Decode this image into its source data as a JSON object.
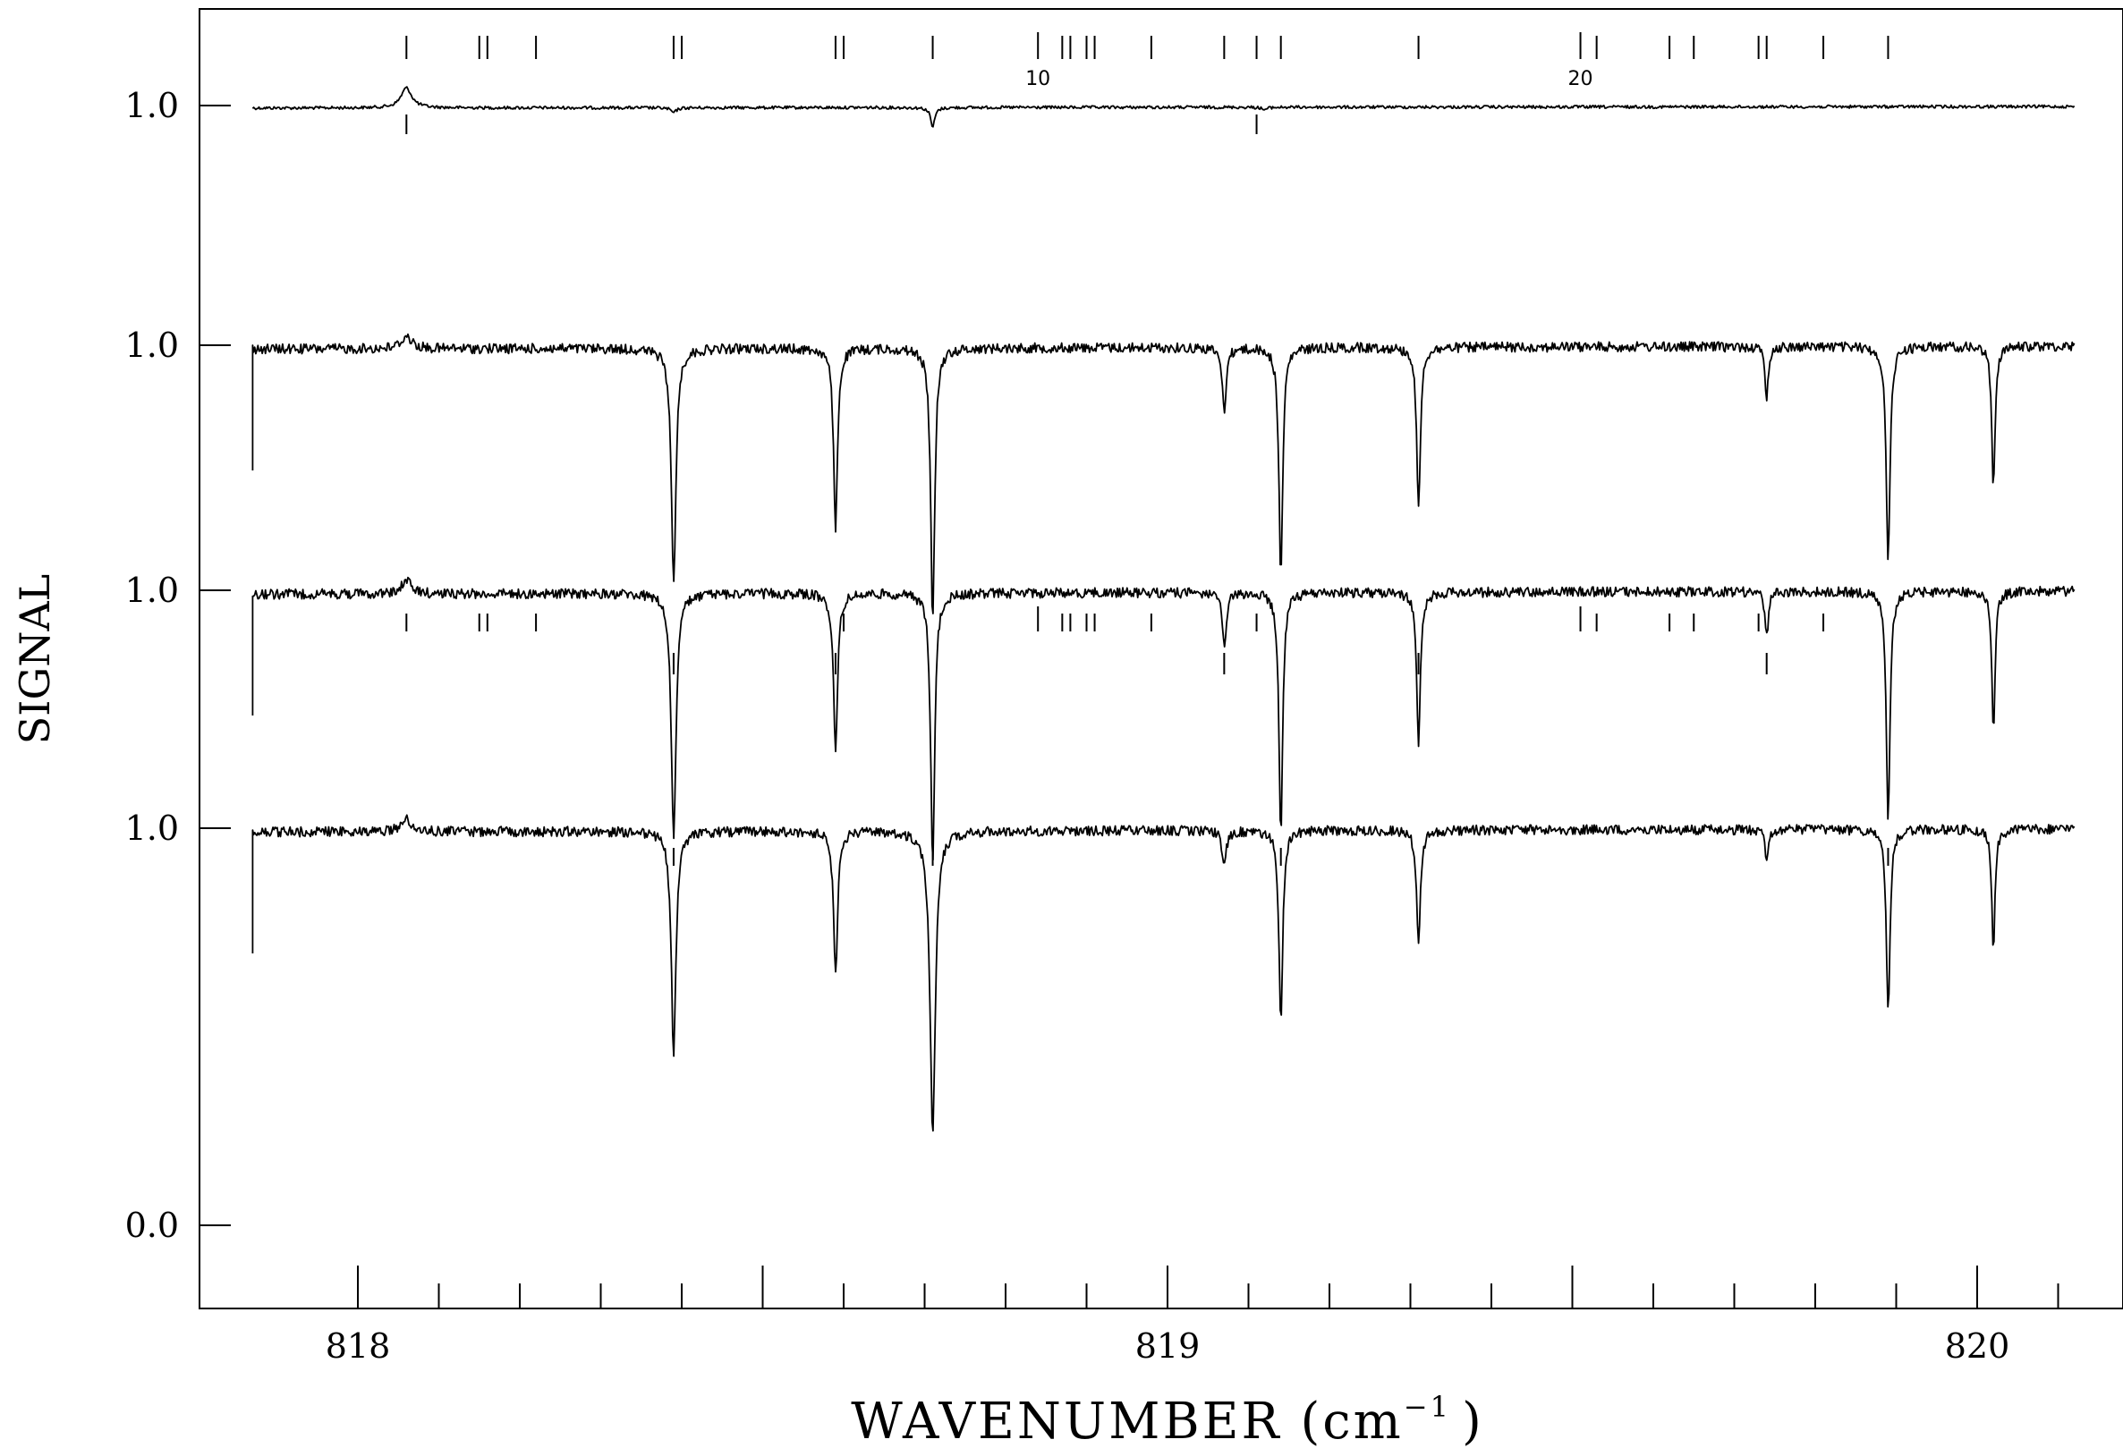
{
  "chart_data": {
    "type": "line",
    "title": "",
    "xlabel": "WAVENUMBER (cm",
    "xlabel_exp": "−1",
    "xlabel_close": ")",
    "ylabel": "SIGNAL",
    "xlim": [
      817.8,
      820.13
    ],
    "x_major_ticks": [
      818,
      819,
      820
    ],
    "x_major_tick_labels": [
      "818",
      "819",
      "820"
    ],
    "x_minor_step": 0.1,
    "y_tick_labels": [
      "1.0",
      "1.0",
      "1.0",
      "1.0",
      "0.0"
    ],
    "grid": false,
    "legend": "none",
    "line_color": "#000000",
    "series": [
      {
        "id": "trace-1",
        "x_range": [
          817.87,
          820.12
        ],
        "baseline": 0.99,
        "baseline_slope": 0.006,
        "features": [
          {
            "x": 818.06,
            "depth": -0.08,
            "width": 0.008
          },
          {
            "x": 818.39,
            "depth": 0.02,
            "width": 0.004
          },
          {
            "x": 818.71,
            "depth": 0.08,
            "width": 0.003
          },
          {
            "x": 819.12,
            "depth": 0.01,
            "width": 0.004
          }
        ]
      },
      {
        "id": "trace-2",
        "x_range": [
          817.87,
          820.12
        ],
        "baseline": 0.985,
        "baseline_slope": 0.012,
        "features": [
          {
            "x": 818.06,
            "depth": -0.05,
            "width": 0.008
          },
          {
            "x": 818.39,
            "depth": 0.92,
            "width": 0.0035
          },
          {
            "x": 818.59,
            "depth": 0.72,
            "width": 0.003
          },
          {
            "x": 818.71,
            "depth": 1.1,
            "width": 0.003
          },
          {
            "x": 819.07,
            "depth": 0.25,
            "width": 0.003
          },
          {
            "x": 819.14,
            "depth": 0.92,
            "width": 0.0028
          },
          {
            "x": 819.31,
            "depth": 0.65,
            "width": 0.0028
          },
          {
            "x": 819.74,
            "depth": 0.2,
            "width": 0.0025
          },
          {
            "x": 819.89,
            "depth": 0.87,
            "width": 0.0028
          },
          {
            "x": 820.02,
            "depth": 0.56,
            "width": 0.0025
          }
        ]
      },
      {
        "id": "trace-3",
        "x_range": [
          817.87,
          820.12
        ],
        "baseline": 0.985,
        "baseline_slope": 0.012,
        "features": [
          {
            "x": 818.06,
            "depth": -0.05,
            "width": 0.008
          },
          {
            "x": 818.39,
            "depth": 0.98,
            "width": 0.0035
          },
          {
            "x": 818.59,
            "depth": 0.65,
            "width": 0.003
          },
          {
            "x": 818.71,
            "depth": 1.1,
            "width": 0.003
          },
          {
            "x": 819.07,
            "depth": 0.22,
            "width": 0.003
          },
          {
            "x": 819.14,
            "depth": 0.96,
            "width": 0.0028
          },
          {
            "x": 819.31,
            "depth": 0.6,
            "width": 0.0028
          },
          {
            "x": 819.74,
            "depth": 0.18,
            "width": 0.0025
          },
          {
            "x": 819.89,
            "depth": 0.9,
            "width": 0.0028
          },
          {
            "x": 820.02,
            "depth": 0.55,
            "width": 0.0025
          }
        ]
      },
      {
        "id": "trace-4",
        "x_range": [
          817.87,
          820.12
        ],
        "baseline": 0.985,
        "baseline_slope": 0.012,
        "features": [
          {
            "x": 818.06,
            "depth": -0.05,
            "width": 0.008
          },
          {
            "x": 818.39,
            "depth": 0.88,
            "width": 0.0035
          },
          {
            "x": 818.59,
            "depth": 0.58,
            "width": 0.003
          },
          {
            "x": 818.71,
            "depth": 1.2,
            "width": 0.004
          },
          {
            "x": 819.07,
            "depth": 0.15,
            "width": 0.003
          },
          {
            "x": 819.14,
            "depth": 0.78,
            "width": 0.0028
          },
          {
            "x": 819.31,
            "depth": 0.47,
            "width": 0.0028
          },
          {
            "x": 819.74,
            "depth": 0.13,
            "width": 0.0025
          },
          {
            "x": 819.89,
            "depth": 0.73,
            "width": 0.0028
          },
          {
            "x": 820.02,
            "depth": 0.47,
            "width": 0.0025
          }
        ]
      }
    ],
    "annotations": {
      "top_marker_labels": [
        {
          "text": "10",
          "x": 818.84
        },
        {
          "text": "20",
          "x": 819.51
        }
      ],
      "top_markers": [
        {
          "x": 818.06
        },
        {
          "x": 818.15
        },
        {
          "x": 818.16
        },
        {
          "x": 818.22
        },
        {
          "x": 818.39
        },
        {
          "x": 818.4
        },
        {
          "x": 818.59
        },
        {
          "x": 818.6
        },
        {
          "x": 818.71
        },
        {
          "x": 818.84,
          "long": true
        },
        {
          "x": 818.87
        },
        {
          "x": 818.88
        },
        {
          "x": 818.9
        },
        {
          "x": 818.91
        },
        {
          "x": 818.98
        },
        {
          "x": 819.07
        },
        {
          "x": 819.11
        },
        {
          "x": 819.14
        },
        {
          "x": 819.31
        },
        {
          "x": 819.51,
          "long": true
        },
        {
          "x": 819.53
        },
        {
          "x": 819.62
        },
        {
          "x": 819.65
        },
        {
          "x": 819.73
        },
        {
          "x": 819.74
        },
        {
          "x": 819.81
        },
        {
          "x": 819.89
        }
      ],
      "trace1_below_markers": [
        {
          "x": 818.06
        },
        {
          "x": 819.11
        }
      ],
      "trace3_above_markers": [
        {
          "x": 818.06
        },
        {
          "x": 818.15
        },
        {
          "x": 818.16
        },
        {
          "x": 818.22
        },
        {
          "x": 818.6
        },
        {
          "x": 818.84,
          "long": true
        },
        {
          "x": 818.87
        },
        {
          "x": 818.88
        },
        {
          "x": 818.9
        },
        {
          "x": 818.91
        },
        {
          "x": 818.98
        },
        {
          "x": 819.11
        },
        {
          "x": 819.51,
          "long": true
        },
        {
          "x": 819.53
        },
        {
          "x": 819.62
        },
        {
          "x": 819.65
        },
        {
          "x": 819.73
        },
        {
          "x": 819.81
        }
      ],
      "trace3_below_markers": [
        {
          "x": 818.39
        },
        {
          "x": 818.59
        },
        {
          "x": 819.07
        },
        {
          "x": 819.31
        },
        {
          "x": 819.74
        }
      ],
      "trace4_above_markers": [
        {
          "x": 818.39
        },
        {
          "x": 818.71
        },
        {
          "x": 819.14
        },
        {
          "x": 819.89
        }
      ]
    }
  }
}
